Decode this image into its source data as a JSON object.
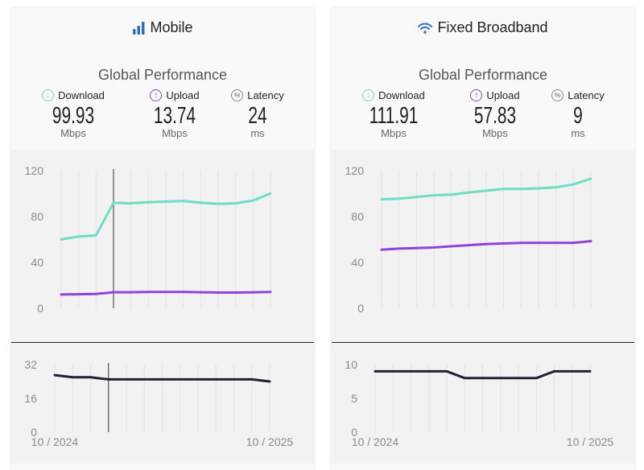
{
  "colors": {
    "download": "#6fdcc4",
    "upload": "#8e44d6",
    "latency": "#1e2233",
    "icon_blue": "#2f6fbf",
    "grid": "#e3e3e3"
  },
  "panels": [
    {
      "title": "Mobile",
      "icon": "cellular-signal-icon",
      "subtitle": "Global Performance",
      "metrics": [
        {
          "label": "Download",
          "value": "99.93",
          "unit": "Mbps",
          "icon": "download-arrow-icon"
        },
        {
          "label": "Upload",
          "value": "13.74",
          "unit": "Mbps",
          "icon": "upload-arrow-icon"
        },
        {
          "label": "Latency",
          "value": "24",
          "unit": "ms",
          "icon": "latency-arrows-icon"
        }
      ]
    },
    {
      "title": "Fixed Broadband",
      "icon": "wifi-icon",
      "subtitle": "Global Performance",
      "metrics": [
        {
          "label": "Download",
          "value": "111.91",
          "unit": "Mbps",
          "icon": "download-arrow-icon"
        },
        {
          "label": "Upload",
          "value": "57.83",
          "unit": "Mbps",
          "icon": "upload-arrow-icon"
        },
        {
          "label": "Latency",
          "value": "9",
          "unit": "ms",
          "icon": "latency-arrows-icon"
        }
      ]
    }
  ],
  "chart_data": [
    {
      "type": "line",
      "panel": "Mobile",
      "ylim": [
        0,
        120
      ],
      "yticks": [
        "0",
        "40",
        "80",
        "120"
      ],
      "grid": "vertical",
      "x_points": 13,
      "hover_index": 3,
      "series": [
        {
          "key": "download",
          "values": [
            60,
            62.5,
            63.5,
            92,
            91.5,
            92.5,
            93,
            93.5,
            92,
            91,
            91.5,
            94,
            100
          ]
        },
        {
          "key": "upload",
          "values": [
            12,
            12.2,
            12.5,
            14,
            14,
            14.2,
            14.2,
            14.2,
            14,
            13.7,
            13.7,
            13.8,
            14.2
          ]
        }
      ]
    },
    {
      "type": "line",
      "panel": "Mobile latency",
      "ylim": [
        0,
        32
      ],
      "yticks": [
        "0",
        "16",
        "32"
      ],
      "grid": "vertical",
      "x_points": 13,
      "hover_index": 3,
      "x_labels": [
        "10 / 2024",
        "10 / 2025"
      ],
      "series": [
        {
          "key": "latency",
          "values": [
            27,
            26,
            26,
            25,
            25,
            25,
            25,
            25,
            25,
            25,
            25,
            25,
            24
          ]
        }
      ]
    },
    {
      "type": "line",
      "panel": "Fixed Broadband",
      "ylim": [
        0,
        120
      ],
      "yticks": [
        "0",
        "40",
        "80",
        "120"
      ],
      "grid": "vertical",
      "x_points": 13,
      "series": [
        {
          "key": "download",
          "values": [
            95,
            95.5,
            97,
            98.5,
            99,
            101,
            102.5,
            104,
            104,
            104.5,
            105.5,
            108,
            113
          ]
        },
        {
          "key": "upload",
          "values": [
            51,
            52,
            52.5,
            53,
            54,
            55,
            56,
            56.5,
            57,
            57,
            57,
            57,
            58.5
          ]
        }
      ]
    },
    {
      "type": "line",
      "panel": "Fixed Broadband latency",
      "ylim": [
        0,
        10
      ],
      "yticks": [
        "0",
        "5",
        "10"
      ],
      "grid": "vertical",
      "x_points": 13,
      "x_labels": [
        "10 / 2024",
        "10 / 2025"
      ],
      "series": [
        {
          "key": "latency",
          "values": [
            9,
            9,
            9,
            9,
            9,
            8,
            8,
            8,
            8,
            8,
            9,
            9,
            9
          ]
        }
      ]
    }
  ]
}
